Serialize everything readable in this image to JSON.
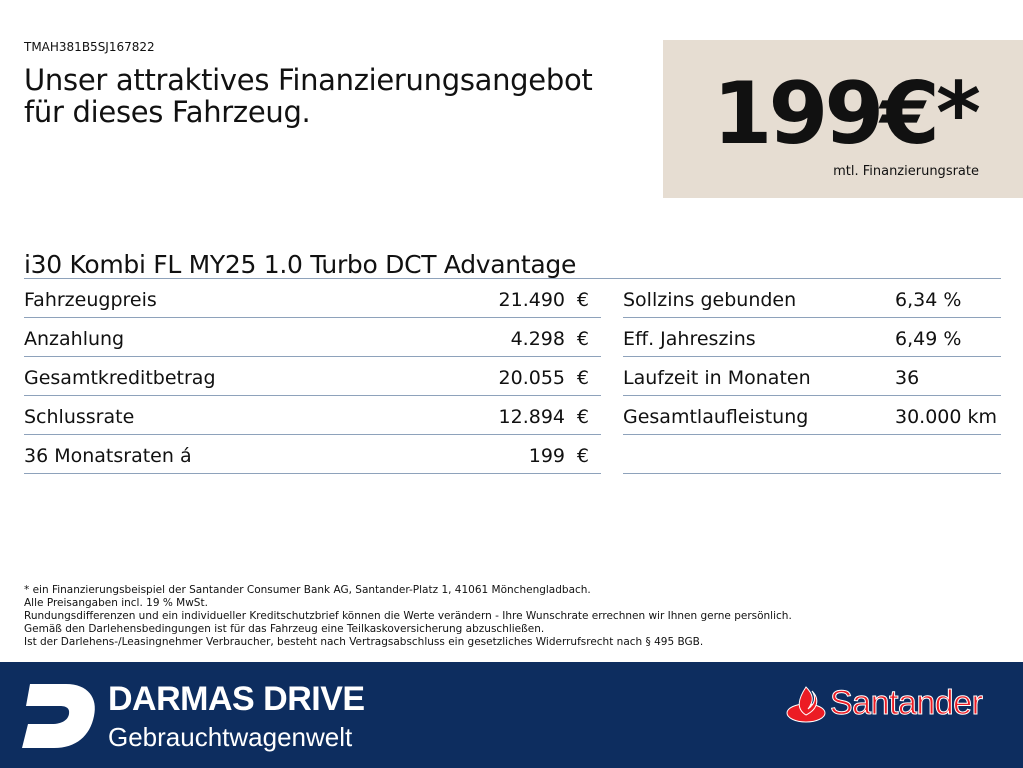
{
  "vin": "TMAH381B5SJ167822",
  "headline": [
    "Unser attraktives Finanzierungsangebot",
    "für dieses Fahrzeug."
  ],
  "price": {
    "value": "199€*",
    "label": "mtl. Finanzierungsrate"
  },
  "model": "i30 Kombi FL MY25 1.0 Turbo DCT Advantage",
  "left_rows": [
    {
      "label": "Fahrzeugpreis",
      "value": "21.490",
      "currency": "€"
    },
    {
      "label": "Anzahlung",
      "value": "4.298",
      "currency": "€"
    },
    {
      "label": "Gesamtkreditbetrag",
      "value": "20.055",
      "currency": "€"
    },
    {
      "label": "Schlussrate",
      "value": "12.894",
      "currency": "€"
    },
    {
      "label": "36 Monatsraten á",
      "value": "199",
      "currency": "€"
    }
  ],
  "right_rows": [
    {
      "label": "Sollzins gebunden",
      "value": "6,34 %"
    },
    {
      "label": "Eff. Jahreszins",
      "value": "6,49 %"
    },
    {
      "label": "Laufzeit in Monaten",
      "value": "36"
    },
    {
      "label": "Gesamtlaufleistung",
      "value": "30.000 km"
    }
  ],
  "footnotes": [
    "* ein Finanzierungsbeispiel der Santander Consumer Bank AG, Santander-Platz 1, 41061 Mönchengladbach.",
    "Alle Preisangaben incl. 19 % MwSt.",
    "Rundungsdifferenzen und ein individueller Kreditschutzbrief können die Werte verändern - Ihre Wunschrate errechnen wir Ihnen gerne persönlich.",
    "Gemäß den Darlehensbedingungen ist für das Fahrzeug eine Teilkaskoversicherung abzuschließen.",
    "Ist der Darlehens-/Leasingnehmer Verbraucher, besteht nach Vertragsabschluss ein gesetzliches Widerrufsrecht nach § 495 BGB."
  ],
  "dealer": {
    "name": "DARMAS DRIVE",
    "tagline": "Gebrauchtwagenwelt"
  },
  "bank": {
    "name": "Santander"
  },
  "colors": {
    "navy": "#0d2d5f",
    "beige": "#e6ddd2",
    "santander_red": "#ec1c24"
  }
}
